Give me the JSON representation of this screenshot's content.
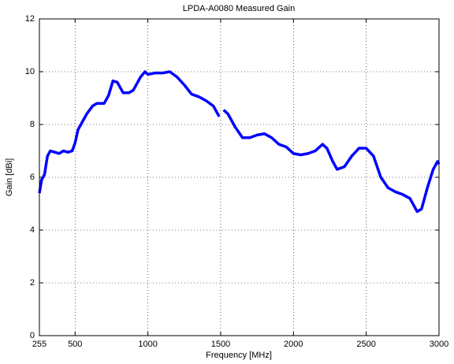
{
  "chart_data": {
    "type": "line",
    "title": "LPDA-A0080 Measured Gain",
    "x_label": "Frequency [MHz]",
    "y_label": "Gain [dBi]",
    "x": [
      255,
      270,
      290,
      310,
      330,
      360,
      390,
      420,
      450,
      480,
      500,
      520,
      550,
      580,
      620,
      650,
      700,
      730,
      760,
      790,
      830,
      870,
      900,
      950,
      980,
      1000,
      1050,
      1100,
      1150,
      1200,
      1250,
      1300,
      1350,
      1400,
      1450,
      1490,
      1500,
      1520,
      1550,
      1600,
      1650,
      1700,
      1750,
      1800,
      1850,
      1900,
      1950,
      2000,
      2050,
      2100,
      2150,
      2200,
      2230,
      2270,
      2300,
      2350,
      2400,
      2450,
      2500,
      2550,
      2600,
      2650,
      2700,
      2750,
      2800,
      2850,
      2880,
      2920,
      2960,
      2990,
      3000
    ],
    "series": [
      {
        "name": "Gain",
        "color": "#0000ff",
        "values": [
          5.4,
          5.9,
          6.1,
          6.8,
          7.0,
          6.95,
          6.9,
          7.0,
          6.95,
          7.0,
          7.3,
          7.8,
          8.1,
          8.4,
          8.7,
          8.8,
          8.8,
          9.1,
          9.65,
          9.6,
          9.2,
          9.2,
          9.3,
          9.8,
          10.0,
          9.9,
          9.95,
          9.95,
          10.0,
          9.8,
          9.5,
          9.15,
          9.05,
          8.9,
          8.7,
          8.3,
          null,
          8.55,
          8.4,
          7.9,
          7.5,
          7.5,
          7.6,
          7.65,
          7.5,
          7.25,
          7.15,
          6.9,
          6.85,
          6.9,
          7.0,
          7.25,
          7.1,
          6.6,
          6.3,
          6.4,
          6.8,
          7.1,
          7.1,
          6.8,
          6.0,
          5.6,
          5.45,
          5.35,
          5.2,
          4.7,
          4.8,
          5.6,
          6.3,
          6.6,
          6.5
        ]
      }
    ],
    "xlim": [
      255,
      3000
    ],
    "xticks": [
      255,
      500,
      1000,
      1500,
      2000,
      2500,
      3000
    ],
    "ylim": [
      0,
      12
    ],
    "yticks": [
      0,
      2,
      4,
      6,
      8,
      10,
      12
    ],
    "grid": true
  }
}
